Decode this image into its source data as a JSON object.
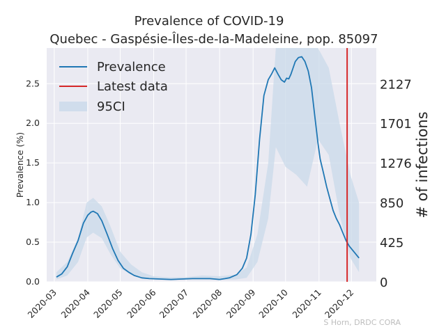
{
  "chart_data": {
    "type": "line",
    "title": "Prevalence of COVID-19",
    "subtitle": "Quebec - Gaspésie-Îles-de-la-Madeleine, pop. 85097",
    "xlabel": "",
    "ylabel": "Prevalence (%)",
    "y2label": "# of infections",
    "ylim": [
      0,
      2.95
    ],
    "yticks": [
      "0.0",
      "0.5",
      "1.0",
      "1.5",
      "2.0",
      "2.5"
    ],
    "y2ticks": [
      "0",
      "425",
      "850",
      "1276",
      "1701",
      "2127"
    ],
    "xticks": [
      "2020-03",
      "2020-04",
      "2020-05",
      "2020-06",
      "2020-07",
      "2020-08",
      "2020-09",
      "2020-10",
      "2020-11",
      "2020-12"
    ],
    "grid": true,
    "legend_position": "top-left",
    "legend": [
      "Prevalence",
      "Latest data",
      "95CI"
    ],
    "latest_data_date": "2020-11-27",
    "credit": "S Horn, DRDC CORA",
    "colors": {
      "prevalence": "#1f77b4",
      "latest": "#d62728",
      "ci": "#c9d9ea",
      "axes_bg": "#eaeaf2",
      "grid": "#ffffff"
    },
    "series": [
      {
        "name": "Prevalence",
        "x": [
          "2020-03-03",
          "2020-03-08",
          "2020-03-13",
          "2020-03-18",
          "2020-03-23",
          "2020-03-28",
          "2020-04-01",
          "2020-04-04",
          "2020-04-06",
          "2020-04-10",
          "2020-04-14",
          "2020-04-19",
          "2020-04-24",
          "2020-04-29",
          "2020-05-04",
          "2020-05-09",
          "2020-05-14",
          "2020-05-21",
          "2020-05-28",
          "2020-06-07",
          "2020-06-17",
          "2020-06-27",
          "2020-07-07",
          "2020-07-15",
          "2020-07-23",
          "2020-08-01",
          "2020-08-06",
          "2020-08-10",
          "2020-08-17",
          "2020-08-22",
          "2020-08-26",
          "2020-08-30",
          "2020-09-03",
          "2020-09-07",
          "2020-09-11",
          "2020-09-15",
          "2020-09-18",
          "2020-09-21",
          "2020-09-24",
          "2020-09-27",
          "2020-09-30",
          "2020-10-02",
          "2020-10-04",
          "2020-10-06",
          "2020-10-08",
          "2020-10-10",
          "2020-10-13",
          "2020-10-16",
          "2020-10-19",
          "2020-10-22",
          "2020-10-25",
          "2020-10-28",
          "2020-10-31",
          "2020-11-02",
          "2020-11-05",
          "2020-11-08",
          "2020-11-11",
          "2020-11-14",
          "2020-11-17",
          "2020-11-20",
          "2020-11-23",
          "2020-11-26",
          "2020-11-29",
          "2020-12-02",
          "2020-12-05",
          "2020-12-08"
        ],
        "y": [
          0.06,
          0.1,
          0.19,
          0.36,
          0.52,
          0.74,
          0.84,
          0.88,
          0.89,
          0.86,
          0.77,
          0.6,
          0.42,
          0.27,
          0.17,
          0.12,
          0.08,
          0.05,
          0.04,
          0.035,
          0.03,
          0.035,
          0.04,
          0.04,
          0.04,
          0.03,
          0.04,
          0.05,
          0.09,
          0.17,
          0.3,
          0.6,
          1.1,
          1.8,
          2.35,
          2.55,
          2.62,
          2.7,
          2.62,
          2.55,
          2.52,
          2.57,
          2.56,
          2.62,
          2.7,
          2.78,
          2.83,
          2.84,
          2.78,
          2.66,
          2.45,
          2.1,
          1.75,
          1.55,
          1.38,
          1.2,
          1.05,
          0.9,
          0.8,
          0.72,
          0.62,
          0.52,
          0.45,
          0.4,
          0.35,
          0.3
        ]
      },
      {
        "name": "95CI",
        "x": [
          "2020-03-03",
          "2020-03-13",
          "2020-03-23",
          "2020-03-31",
          "2020-04-06",
          "2020-04-14",
          "2020-04-22",
          "2020-05-01",
          "2020-05-11",
          "2020-05-21",
          "2020-06-01",
          "2020-06-16",
          "2020-07-01",
          "2020-07-16",
          "2020-08-01",
          "2020-08-16",
          "2020-08-26",
          "2020-09-05",
          "2020-09-15",
          "2020-09-22",
          "2020-10-01",
          "2020-10-11",
          "2020-10-21",
          "2020-10-31",
          "2020-11-10",
          "2020-11-20",
          "2020-11-30",
          "2020-12-08"
        ],
        "lower": [
          0.03,
          0.08,
          0.25,
          0.56,
          0.62,
          0.55,
          0.35,
          0.17,
          0.09,
          0.05,
          0.03,
          0.025,
          0.03,
          0.03,
          0.025,
          0.03,
          0.05,
          0.25,
          0.8,
          1.7,
          1.45,
          1.35,
          1.2,
          1.8,
          1.6,
          0.85,
          0.3,
          0.12
        ],
        "upper": [
          0.12,
          0.25,
          0.55,
          1.0,
          1.06,
          0.95,
          0.7,
          0.38,
          0.22,
          0.12,
          0.07,
          0.055,
          0.06,
          0.08,
          0.07,
          0.09,
          0.18,
          0.6,
          1.5,
          2.95,
          2.95,
          2.95,
          2.95,
          2.95,
          2.7,
          2.0,
          1.35,
          1.0
        ]
      }
    ]
  }
}
